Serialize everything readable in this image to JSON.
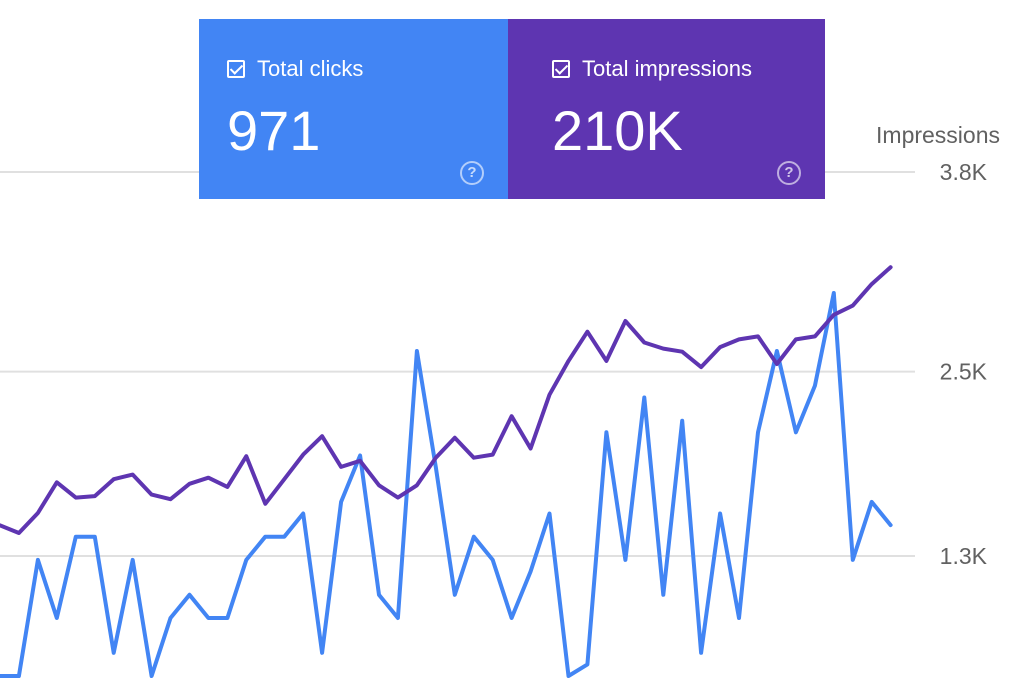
{
  "cards": {
    "clicks": {
      "label": "Total clicks",
      "value": "971",
      "color": "#4285f4",
      "help_icon": "help-circle-icon"
    },
    "impressions": {
      "label": "Total impressions",
      "value": "210K",
      "color": "#5e35b1",
      "help_icon": "help-circle-icon"
    }
  },
  "chart_data": {
    "type": "line",
    "ylabel_right": "Impressions",
    "y_ticks_right": [
      {
        "value": 1300,
        "label": "1.3K"
      },
      {
        "value": 2500,
        "label": "2.5K"
      },
      {
        "value": 3800,
        "label": "3.8K"
      }
    ],
    "ylim_right": [
      500,
      3800
    ],
    "grid": true,
    "series": [
      {
        "color": "#4285f4",
        "axis": "clicks",
        "values": [
          6,
          6,
          16,
          11,
          18,
          18,
          8,
          16,
          6,
          11,
          13,
          11,
          11,
          16,
          18,
          18,
          20,
          8,
          21,
          25,
          13,
          11,
          34,
          24,
          13,
          18,
          16,
          11,
          15,
          20,
          6,
          7,
          27,
          16,
          30,
          13,
          28,
          8,
          20,
          11,
          27,
          34,
          27,
          31,
          39,
          16,
          21,
          19
        ]
      },
      {
        "color": "#5e35b1",
        "axis": "impressions",
        "values": [
          1500,
          1450,
          1580,
          1780,
          1680,
          1690,
          1800,
          1830,
          1700,
          1670,
          1770,
          1810,
          1750,
          1950,
          1640,
          1800,
          1960,
          2080,
          1880,
          1920,
          1760,
          1680,
          1760,
          1940,
          2070,
          1940,
          1960,
          2210,
          2000,
          2350,
          2570,
          2760,
          2570,
          2830,
          2690,
          2650,
          2630,
          2530,
          2660,
          2710,
          2730,
          2550,
          2710,
          2730,
          2870,
          2930,
          3070,
          3180
        ]
      }
    ]
  }
}
